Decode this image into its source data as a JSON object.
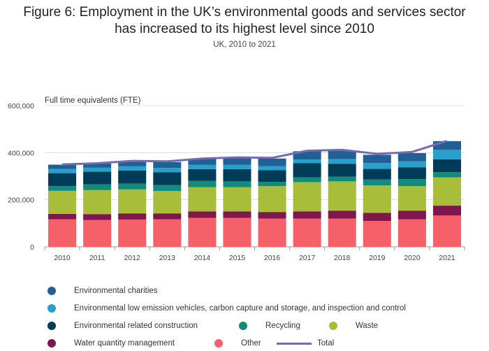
{
  "header": {
    "title_line1": "Figure 6: Employment in the UK’s environmental goods and services sector",
    "title_line2": "has increased to its highest level since 2010",
    "subtitle": "UK, 2010 to 2021"
  },
  "chart_data": {
    "type": "bar",
    "stacked": true,
    "ylabel": "Full time equivalents (FTE)",
    "xlabel": "",
    "ylim": [
      0,
      600000
    ],
    "yticks": [
      0,
      200000,
      400000,
      600000
    ],
    "ytick_labels": [
      "0",
      "200,000",
      "400,000",
      "600,000"
    ],
    "grid": true,
    "legend_placement": "bottom",
    "categories": [
      "2010",
      "2011",
      "2012",
      "2013",
      "2014",
      "2015",
      "2016",
      "2017",
      "2018",
      "2019",
      "2020",
      "2021"
    ],
    "series": [
      {
        "name": "Other",
        "color": "#f66068",
        "values": [
          117000,
          114000,
          116000,
          117000,
          123000,
          123000,
          120000,
          120000,
          120000,
          110000,
          117000,
          133000
        ]
      },
      {
        "name": "Water quantity management",
        "color": "#801650",
        "values": [
          23000,
          25000,
          26000,
          25000,
          27000,
          27000,
          28000,
          30000,
          33000,
          34000,
          36000,
          42000
        ]
      },
      {
        "name": "Waste",
        "color": "#a8bd3a",
        "values": [
          98000,
          102000,
          102000,
          95000,
          103000,
          103000,
          110000,
          125000,
          125000,
          117000,
          105000,
          120000
        ]
      },
      {
        "name": "Recycling",
        "color": "#118c7b",
        "values": [
          20000,
          25000,
          25000,
          25000,
          27000,
          25000,
          18000,
          20000,
          20000,
          25000,
          30000,
          22000
        ]
      },
      {
        "name": "Environmental related construction",
        "color": "#003c57",
        "values": [
          55000,
          53000,
          55000,
          55000,
          50000,
          52000,
          50000,
          60000,
          55000,
          45000,
          50000,
          55000
        ]
      },
      {
        "name": "Environmental low emission vehicles, carbon capture and storage, and inspection and control",
        "color": "#27a0cc",
        "values": [
          18000,
          17000,
          18000,
          18000,
          18000,
          18000,
          17000,
          16000,
          20000,
          25000,
          25000,
          40000
        ]
      },
      {
        "name": "Environmental charities",
        "color": "#206095",
        "values": [
          18000,
          18000,
          23000,
          25000,
          25000,
          30000,
          32000,
          35000,
          35000,
          35000,
          35000,
          37000
        ]
      }
    ],
    "line_series": {
      "name": "Total",
      "color": "#746cb1",
      "values": [
        350000,
        355000,
        365000,
        363000,
        375000,
        380000,
        378000,
        408000,
        412000,
        395000,
        403000,
        450000
      ]
    }
  },
  "legend": [
    {
      "label": "Environmental charities",
      "color": "#206095",
      "kind": "dot"
    },
    {
      "label": "Environmental low emission vehicles, carbon capture and storage, and inspection and control",
      "color": "#27a0cc",
      "kind": "dot"
    },
    {
      "label": "Environmental related construction",
      "color": "#003c57",
      "kind": "dot"
    },
    {
      "label": "Recycling",
      "color": "#118c7b",
      "kind": "dot"
    },
    {
      "label": "Waste",
      "color": "#a8bd3a",
      "kind": "dot"
    },
    {
      "label": "Water quantity management",
      "color": "#801650",
      "kind": "dot"
    },
    {
      "label": "Other",
      "color": "#f66068",
      "kind": "dot"
    },
    {
      "label": "Total",
      "color": "#746cb1",
      "kind": "line"
    }
  ]
}
